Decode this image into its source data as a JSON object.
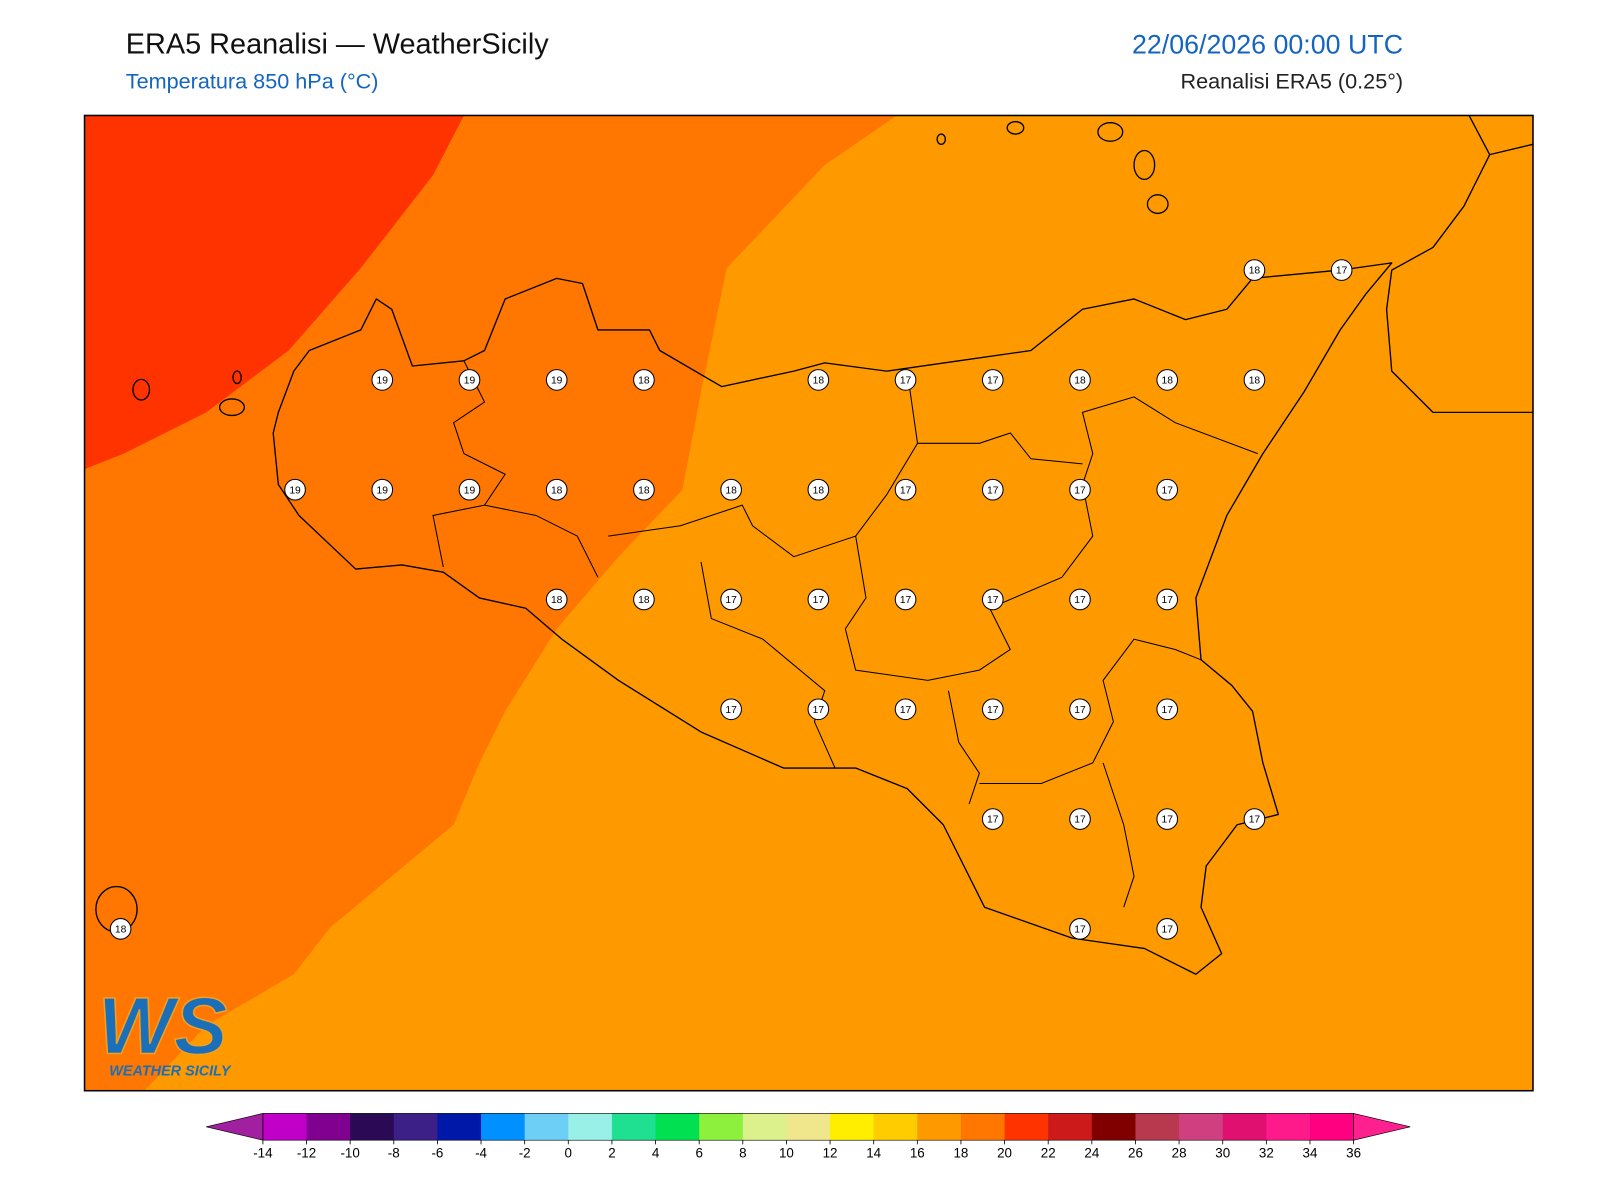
{
  "header": {
    "title": "ERA5 Reanalisi — WeatherSicily",
    "subtitle": "Temperatura 850 hPa (°C)",
    "datetime": "22/06/2026 00:00 UTC",
    "source": "Reanalisi ERA5 (0.25°)"
  },
  "logo": {
    "mark": "WS",
    "name": "WEATHER SICILY"
  },
  "station_grid": [
    [
      null,
      null,
      null,
      null,
      null,
      null,
      null,
      null,
      null,
      null,
      null,
      null,
      null,
      18,
      17
    ],
    [
      null,
      null,
      null,
      19,
      19,
      19,
      18,
      null,
      18,
      17,
      17,
      18,
      18,
      18,
      null
    ],
    [
      null,
      null,
      19,
      19,
      19,
      18,
      18,
      18,
      18,
      17,
      17,
      17,
      17,
      null,
      null
    ],
    [
      null,
      null,
      null,
      null,
      null,
      18,
      18,
      17,
      17,
      17,
      17,
      17,
      17,
      null,
      null
    ],
    [
      null,
      null,
      null,
      null,
      null,
      null,
      null,
      17,
      17,
      17,
      17,
      17,
      17,
      null,
      null
    ],
    [
      null,
      null,
      null,
      null,
      null,
      null,
      null,
      null,
      null,
      null,
      17,
      17,
      17,
      17,
      null
    ],
    [
      18,
      null,
      null,
      null,
      null,
      null,
      null,
      null,
      null,
      null,
      null,
      17,
      17,
      null,
      null
    ]
  ],
  "colorbar": {
    "ticks": [
      -14,
      -12,
      -10,
      -8,
      -6,
      -4,
      -2,
      0,
      2,
      4,
      6,
      8,
      10,
      12,
      14,
      16,
      18,
      20,
      22,
      24,
      26,
      28,
      30,
      32,
      34,
      36
    ],
    "colors": [
      "#c000c8",
      "#800090",
      "#2a0a55",
      "#3c2088",
      "#0018a8",
      "#0090ff",
      "#6dcff6",
      "#98f0e6",
      "#1ee090",
      "#00e050",
      "#8cf03c",
      "#dcf08c",
      "#f0e68c",
      "#ffee00",
      "#ffcc00",
      "#ff9900",
      "#ff7700",
      "#ff3300",
      "#cc1a1a",
      "#800000",
      "#b8384e",
      "#d04080",
      "#e01070",
      "#ff1a8c",
      "#ff0080"
    ],
    "extend_colors": [
      "#a020a0",
      "#ff2090"
    ]
  }
}
